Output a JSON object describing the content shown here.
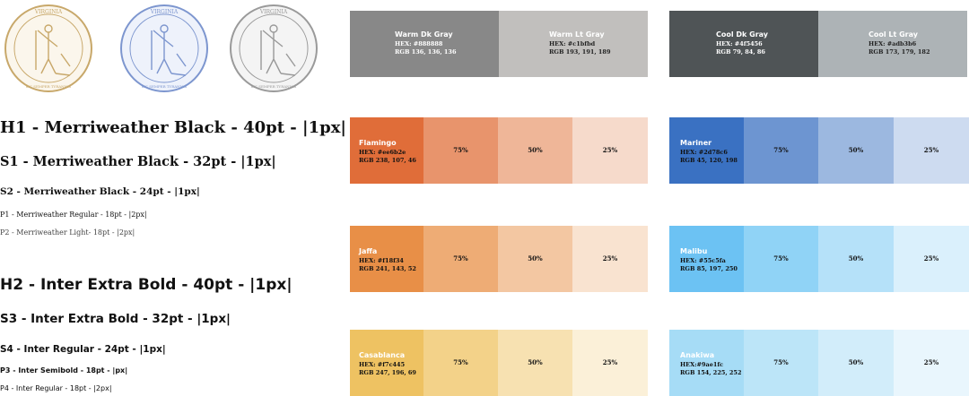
{
  "seals": [
    {
      "color": "#c8a86a",
      "top_text": "VIRGINIA",
      "bottom_text": "SIC SEMPER TYRANNIS",
      "icon": "virginia-seal-gold"
    },
    {
      "color": "#7d96cf",
      "top_text": "VIRGINIA",
      "bottom_text": "SIC SEMPER TYRANNIS",
      "icon": "virginia-seal-blue"
    },
    {
      "color": "#9a9a9a",
      "top_text": "VIRGINIA",
      "bottom_text": "SIC SEMPER TYRANNIS",
      "icon": "virginia-seal-gray"
    }
  ],
  "typography": {
    "h1": "H1 - Merriweather Black - 40pt - |1px|",
    "s1": "S1 - Merriweather Black - 32pt - |1px|",
    "s2": "S2 - Merriweather Black - 24pt - |1px|",
    "p1": "P1 - Merriweather Regular - 18pt - |2px|",
    "p2": "P2 - Merriweather Light- 18pt - |2px|",
    "h2": "H2 - Inter Extra Bold - 40pt - |1px|",
    "s3": "S3 - Inter Extra Bold - 32pt - |1px|",
    "s4": "S4 - Inter Regular - 24pt - |1px|",
    "p3": "P3 - Inter Semibold - 18pt - |px|",
    "p4": "P4 - Inter Regular - 18pt - |2px|"
  },
  "neutrals": {
    "warm": [
      {
        "name": "Warm Dk Gray",
        "hex": "HEX: #888888",
        "rgb": "RGB 136, 136, 136",
        "color": "#888888"
      },
      {
        "name": "Warm Lt Gray",
        "hex": "HEX: #c1bfbd",
        "rgb": "RGB 193, 191, 189",
        "color": "#c1bfbd"
      }
    ],
    "cool": [
      {
        "name": "Cool Dk Gray",
        "hex": "HEX: #4f5456",
        "rgb": "RGB 79, 84, 86",
        "color": "#4f5456"
      },
      {
        "name": "Cool Lt Gray",
        "hex": "HEX: #adb3b6",
        "rgb": "RGB 173, 179, 182",
        "color": "#adb3b6"
      }
    ]
  },
  "palettes": [
    {
      "name": "Flamingo",
      "hex": "HEX: #ee6b2e",
      "rgb": "RGB 238, 107, 46",
      "color": "#e06d39",
      "tints": [
        {
          "label": "75%",
          "color": "#e8946c"
        },
        {
          "label": "50%",
          "color": "#efb698"
        },
        {
          "label": "25%",
          "color": "#f6dacb"
        }
      ]
    },
    {
      "name": "Mariner",
      "hex": "HEX: #2d78c6",
      "rgb": "RGB 45, 120, 198",
      "color": "#3a71c2",
      "tints": [
        {
          "label": "75%",
          "color": "#6d95d1"
        },
        {
          "label": "50%",
          "color": "#9cb8e0"
        },
        {
          "label": "25%",
          "color": "#cddbf0"
        }
      ]
    },
    {
      "name": "Jaffa",
      "hex": "HEX: #f18f34",
      "rgb": "RGB 241, 143, 52",
      "color": "#e88f47",
      "tints": [
        {
          "label": "75%",
          "color": "#eeac75"
        },
        {
          "label": "50%",
          "color": "#f3c7a2"
        },
        {
          "label": "25%",
          "color": "#f9e3d0"
        }
      ]
    },
    {
      "name": "Malibu",
      "hex": "HEX: #55c5fa",
      "rgb": "RGB 85, 197, 250",
      "color": "#6cc2f3",
      "tints": [
        {
          "label": "75%",
          "color": "#90d3f6"
        },
        {
          "label": "50%",
          "color": "#b5e1f9"
        },
        {
          "label": "25%",
          "color": "#daf0fc"
        }
      ]
    },
    {
      "name": "Casablanca",
      "hex": "HEX: #f7c445",
      "rgb": "RGB 247, 196, 69",
      "color": "#eec262",
      "tints": [
        {
          "label": "75%",
          "color": "#f3d289"
        },
        {
          "label": "50%",
          "color": "#f7e1b1"
        },
        {
          "label": "25%",
          "color": "#fbf0d8"
        }
      ]
    },
    {
      "name": "Anakiwa",
      "hex": "HEX:#9ae1fc",
      "rgb": "RGB 154, 225, 252",
      "color": "#a6dcf6",
      "tints": [
        {
          "label": "75%",
          "color": "#bce5f8"
        },
        {
          "label": "50%",
          "color": "#d2edfa"
        },
        {
          "label": "25%",
          "color": "#e9f6fd"
        }
      ]
    }
  ]
}
